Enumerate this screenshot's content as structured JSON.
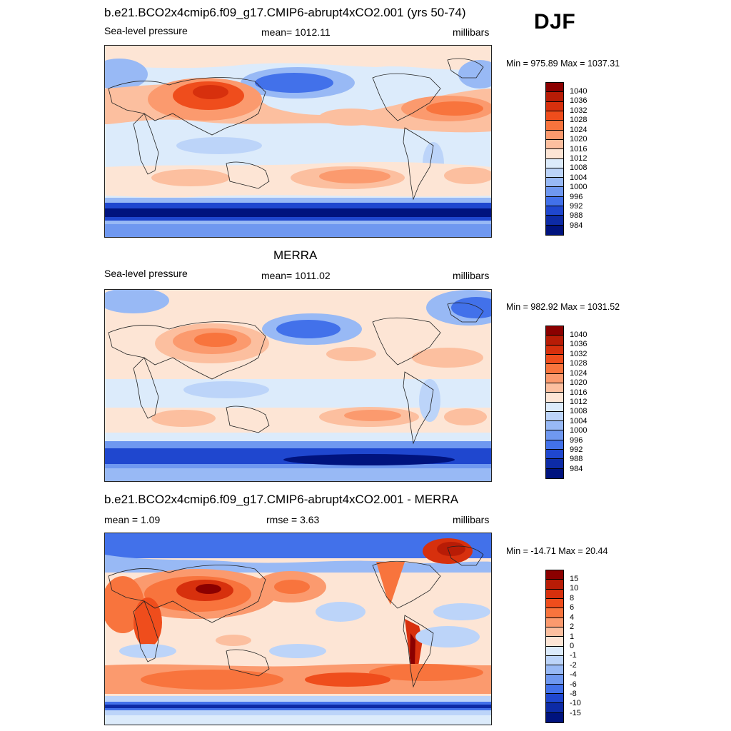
{
  "season": "DJF",
  "panels": [
    {
      "id": "model",
      "title": "b.e21.BCO2x4cmip6.f09_g17.CMIP6-abrupt4xCO2.001 (yrs 50-74)",
      "left_label": "Sea-level pressure",
      "center_label": "mean= 1012.11",
      "right_label": "millibars",
      "minmax": "Min = 975.89 Max = 1037.31",
      "levels": [
        "1040",
        "1036",
        "1032",
        "1028",
        "1024",
        "1020",
        "1016",
        "1012",
        "1008",
        "1004",
        "1000",
        "996",
        "992",
        "988",
        "984"
      ],
      "colors": [
        "#8b0000",
        "#b81c06",
        "#d7300d",
        "#ef4d1c",
        "#f8743d",
        "#fb9a6e",
        "#fcbf9f",
        "#fde5d5",
        "#dcebfb",
        "#bcd4f9",
        "#98b9f5",
        "#6f98f0",
        "#4271ea",
        "#1f47cf",
        "#0d2ba6",
        "#00137e"
      ]
    },
    {
      "id": "obs",
      "title": "MERRA",
      "left_label": "Sea-level pressure",
      "center_label": "mean= 1011.02",
      "right_label": "millibars",
      "minmax": "Min = 982.92 Max = 1031.52",
      "levels": [
        "1040",
        "1036",
        "1032",
        "1028",
        "1024",
        "1020",
        "1016",
        "1012",
        "1008",
        "1004",
        "1000",
        "996",
        "992",
        "988",
        "984"
      ],
      "colors": [
        "#8b0000",
        "#b81c06",
        "#d7300d",
        "#ef4d1c",
        "#f8743d",
        "#fb9a6e",
        "#fcbf9f",
        "#fde5d5",
        "#dcebfb",
        "#bcd4f9",
        "#98b9f5",
        "#6f98f0",
        "#4271ea",
        "#1f47cf",
        "#0d2ba6",
        "#00137e"
      ]
    },
    {
      "id": "diff",
      "title": "b.e21.BCO2x4cmip6.f09_g17.CMIP6-abrupt4xCO2.001 - MERRA",
      "left_label": "mean =   1.09",
      "center_label": "rmse =   3.63",
      "right_label": "millibars",
      "minmax": "Min = -14.71 Max =  20.44",
      "levels": [
        "15",
        "10",
        "8",
        "6",
        "4",
        "2",
        "1",
        "0",
        "-1",
        "-2",
        "-4",
        "-6",
        "-8",
        "-10",
        "-15"
      ],
      "colors": [
        "#8b0000",
        "#b81c06",
        "#d7300d",
        "#ef4d1c",
        "#f8743d",
        "#fb9a6e",
        "#fcbf9f",
        "#fde5d5",
        "#dcebfb",
        "#bcd4f9",
        "#98b9f5",
        "#6f98f0",
        "#4271ea",
        "#1f47cf",
        "#0d2ba6",
        "#00137e"
      ]
    }
  ]
}
